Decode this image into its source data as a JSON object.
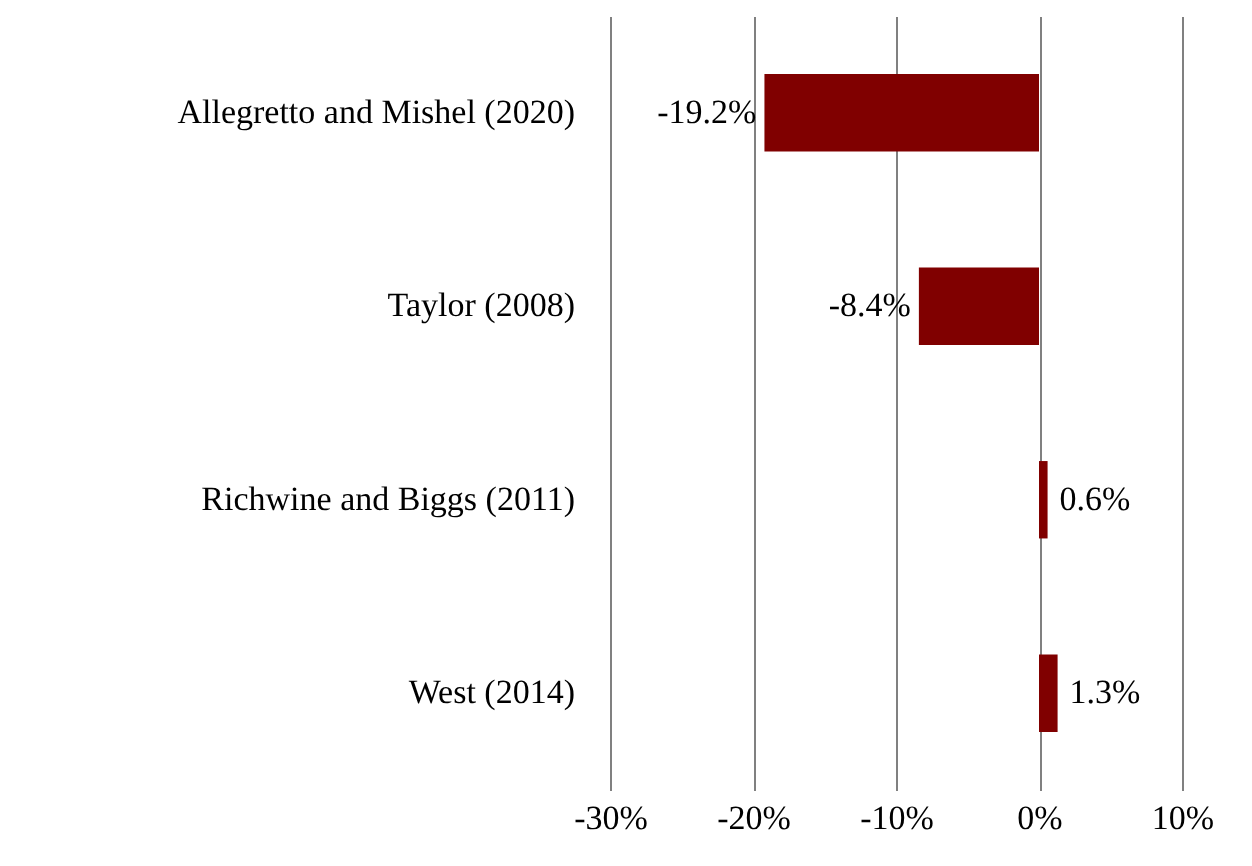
{
  "chart_data": {
    "type": "bar",
    "orientation": "horizontal",
    "categories": [
      "Allegretto and Mishel (2020)",
      "Taylor (2008)",
      "Richwine and Biggs (2011)",
      "West (2014)"
    ],
    "values": [
      -19.2,
      -8.4,
      0.6,
      1.3
    ],
    "value_labels": [
      "-19.2%",
      "-8.4%",
      "0.6%",
      "1.3%"
    ],
    "color": "#800000",
    "xlim": [
      -30,
      10
    ],
    "xticks": [
      {
        "value": -30,
        "label": "-30%"
      },
      {
        "value": -20,
        "label": "-20%"
      },
      {
        "value": -10,
        "label": "-10%"
      },
      {
        "value": 0,
        "label": "0%"
      },
      {
        "value": 10,
        "label": "10%"
      }
    ],
    "grid": "x"
  }
}
